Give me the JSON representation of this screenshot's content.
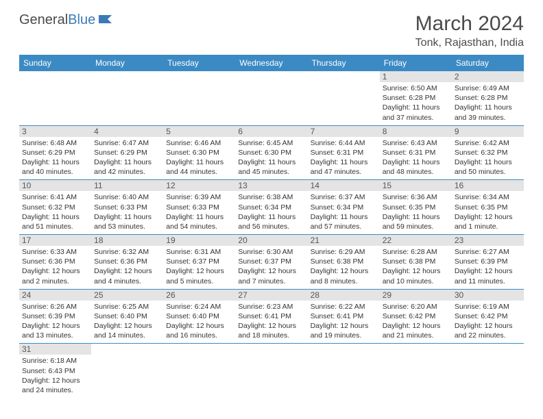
{
  "brand": {
    "part1": "General",
    "part2": "Blue"
  },
  "title": "March 2024",
  "location": "Tonk, Rajasthan, India",
  "colors": {
    "header_bg": "#3b8ac4",
    "header_fg": "#ffffff",
    "daynum_bg": "#e4e4e4",
    "border": "#3b8ac4",
    "text": "#333333",
    "brand_gray": "#4a4a4a",
    "brand_blue": "#3a7ab8"
  },
  "dayHeaders": [
    "Sunday",
    "Monday",
    "Tuesday",
    "Wednesday",
    "Thursday",
    "Friday",
    "Saturday"
  ],
  "weeks": [
    [
      null,
      null,
      null,
      null,
      null,
      {
        "num": "1",
        "sunrise": "6:50 AM",
        "sunset": "6:28 PM",
        "daylight": "11 hours and 37 minutes."
      },
      {
        "num": "2",
        "sunrise": "6:49 AM",
        "sunset": "6:28 PM",
        "daylight": "11 hours and 39 minutes."
      }
    ],
    [
      {
        "num": "3",
        "sunrise": "6:48 AM",
        "sunset": "6:29 PM",
        "daylight": "11 hours and 40 minutes."
      },
      {
        "num": "4",
        "sunrise": "6:47 AM",
        "sunset": "6:29 PM",
        "daylight": "11 hours and 42 minutes."
      },
      {
        "num": "5",
        "sunrise": "6:46 AM",
        "sunset": "6:30 PM",
        "daylight": "11 hours and 44 minutes."
      },
      {
        "num": "6",
        "sunrise": "6:45 AM",
        "sunset": "6:30 PM",
        "daylight": "11 hours and 45 minutes."
      },
      {
        "num": "7",
        "sunrise": "6:44 AM",
        "sunset": "6:31 PM",
        "daylight": "11 hours and 47 minutes."
      },
      {
        "num": "8",
        "sunrise": "6:43 AM",
        "sunset": "6:31 PM",
        "daylight": "11 hours and 48 minutes."
      },
      {
        "num": "9",
        "sunrise": "6:42 AM",
        "sunset": "6:32 PM",
        "daylight": "11 hours and 50 minutes."
      }
    ],
    [
      {
        "num": "10",
        "sunrise": "6:41 AM",
        "sunset": "6:32 PM",
        "daylight": "11 hours and 51 minutes."
      },
      {
        "num": "11",
        "sunrise": "6:40 AM",
        "sunset": "6:33 PM",
        "daylight": "11 hours and 53 minutes."
      },
      {
        "num": "12",
        "sunrise": "6:39 AM",
        "sunset": "6:33 PM",
        "daylight": "11 hours and 54 minutes."
      },
      {
        "num": "13",
        "sunrise": "6:38 AM",
        "sunset": "6:34 PM",
        "daylight": "11 hours and 56 minutes."
      },
      {
        "num": "14",
        "sunrise": "6:37 AM",
        "sunset": "6:34 PM",
        "daylight": "11 hours and 57 minutes."
      },
      {
        "num": "15",
        "sunrise": "6:36 AM",
        "sunset": "6:35 PM",
        "daylight": "11 hours and 59 minutes."
      },
      {
        "num": "16",
        "sunrise": "6:34 AM",
        "sunset": "6:35 PM",
        "daylight": "12 hours and 1 minute."
      }
    ],
    [
      {
        "num": "17",
        "sunrise": "6:33 AM",
        "sunset": "6:36 PM",
        "daylight": "12 hours and 2 minutes."
      },
      {
        "num": "18",
        "sunrise": "6:32 AM",
        "sunset": "6:36 PM",
        "daylight": "12 hours and 4 minutes."
      },
      {
        "num": "19",
        "sunrise": "6:31 AM",
        "sunset": "6:37 PM",
        "daylight": "12 hours and 5 minutes."
      },
      {
        "num": "20",
        "sunrise": "6:30 AM",
        "sunset": "6:37 PM",
        "daylight": "12 hours and 7 minutes."
      },
      {
        "num": "21",
        "sunrise": "6:29 AM",
        "sunset": "6:38 PM",
        "daylight": "12 hours and 8 minutes."
      },
      {
        "num": "22",
        "sunrise": "6:28 AM",
        "sunset": "6:38 PM",
        "daylight": "12 hours and 10 minutes."
      },
      {
        "num": "23",
        "sunrise": "6:27 AM",
        "sunset": "6:39 PM",
        "daylight": "12 hours and 11 minutes."
      }
    ],
    [
      {
        "num": "24",
        "sunrise": "6:26 AM",
        "sunset": "6:39 PM",
        "daylight": "12 hours and 13 minutes."
      },
      {
        "num": "25",
        "sunrise": "6:25 AM",
        "sunset": "6:40 PM",
        "daylight": "12 hours and 14 minutes."
      },
      {
        "num": "26",
        "sunrise": "6:24 AM",
        "sunset": "6:40 PM",
        "daylight": "12 hours and 16 minutes."
      },
      {
        "num": "27",
        "sunrise": "6:23 AM",
        "sunset": "6:41 PM",
        "daylight": "12 hours and 18 minutes."
      },
      {
        "num": "28",
        "sunrise": "6:22 AM",
        "sunset": "6:41 PM",
        "daylight": "12 hours and 19 minutes."
      },
      {
        "num": "29",
        "sunrise": "6:20 AM",
        "sunset": "6:42 PM",
        "daylight": "12 hours and 21 minutes."
      },
      {
        "num": "30",
        "sunrise": "6:19 AM",
        "sunset": "6:42 PM",
        "daylight": "12 hours and 22 minutes."
      }
    ],
    [
      {
        "num": "31",
        "sunrise": "6:18 AM",
        "sunset": "6:43 PM",
        "daylight": "12 hours and 24 minutes."
      },
      null,
      null,
      null,
      null,
      null,
      null
    ]
  ],
  "labels": {
    "sunrise": "Sunrise:",
    "sunset": "Sunset:",
    "daylight": "Daylight:"
  }
}
